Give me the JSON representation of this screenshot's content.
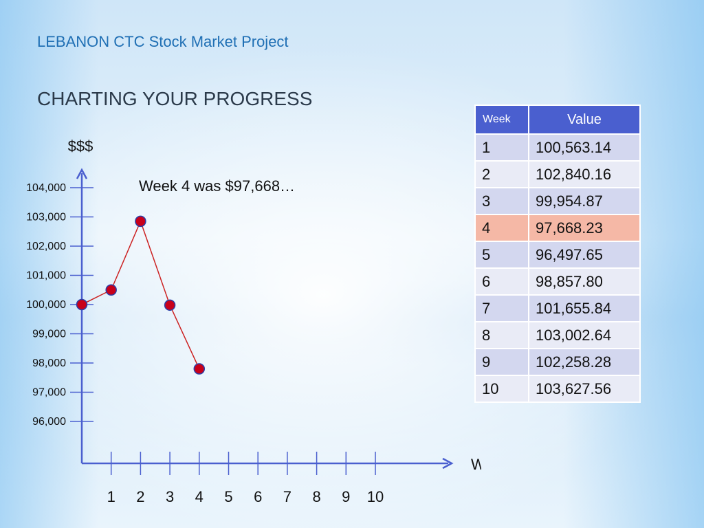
{
  "slide": {
    "subtitle": "LEBANON CTC Stock Market Project",
    "title": "CHARTING YOUR PROGRESS",
    "annotation": "Week 4 was $97,668…"
  },
  "chart_data": {
    "type": "line",
    "ylabel": "$$$",
    "xlabel": "WEEKS",
    "y_ticks": [
      "104,000",
      "103,000",
      "102,000",
      "101,000",
      "100,000",
      "99,000",
      "98,000",
      "97,000",
      "96,000"
    ],
    "y_tick_values": [
      104000,
      103000,
      102000,
      101000,
      100000,
      99000,
      98000,
      97000,
      96000
    ],
    "x_ticks": [
      "1",
      "2",
      "3",
      "4",
      "5",
      "6",
      "7",
      "8",
      "9",
      "10"
    ],
    "series": [
      {
        "x": [
          0,
          1,
          2,
          3,
          4
        ],
        "y": [
          100000,
          100500,
          102850,
          99980,
          97800
        ]
      }
    ],
    "colors": {
      "axis": "#4a5fcf",
      "line": "#cc2222",
      "marker": "#c8001a"
    }
  },
  "table": {
    "headers": {
      "week": "Week",
      "value": "Value"
    },
    "rows": [
      {
        "week": "1",
        "value": "100,563.14"
      },
      {
        "week": "2",
        "value": "102,840.16"
      },
      {
        "week": "3",
        "value": "99,954.87"
      },
      {
        "week": "4",
        "value": "97,668.23"
      },
      {
        "week": "5",
        "value": "96,497.65"
      },
      {
        "week": "6",
        "value": "98,857.80"
      },
      {
        "week": "7",
        "value": "101,655.84"
      },
      {
        "week": "8",
        "value": "103,002.64"
      },
      {
        "week": "9",
        "value": "102,258.28"
      },
      {
        "week": "10",
        "value": "103,627.56"
      }
    ],
    "highlight_week": "4"
  }
}
